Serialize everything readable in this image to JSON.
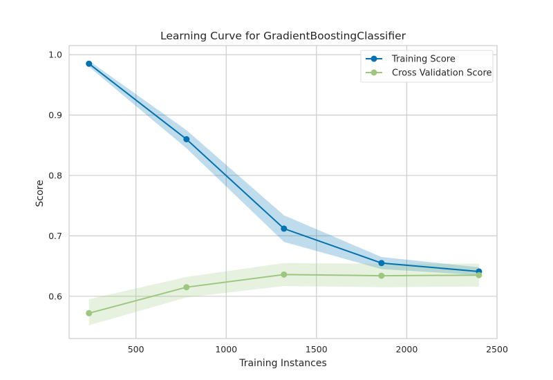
{
  "chart_data": {
    "type": "line",
    "title": "Learning Curve for GradientBoostingClassifier",
    "xlabel": "Training Instances",
    "ylabel": "Score",
    "xlim": [
      130,
      2500
    ],
    "ylim": [
      0.53,
      1.015
    ],
    "xticks": [
      500,
      1000,
      1500,
      2000,
      2500
    ],
    "yticks": [
      0.6,
      0.7,
      0.8,
      0.9,
      1.0
    ],
    "xtick_labels": [
      "500",
      "1000",
      "1500",
      "2000",
      "2500"
    ],
    "ytick_labels": [
      "0.6",
      "0.7",
      "0.8",
      "0.9",
      "1.0"
    ],
    "grid": true,
    "legend_position": "top-right",
    "x": [
      240,
      780,
      1320,
      1860,
      2400
    ],
    "series": [
      {
        "name": "Training Score",
        "color": "#0072b2",
        "values": [
          0.985,
          0.86,
          0.712,
          0.655,
          0.641
        ],
        "band_lower": [
          0.98,
          0.845,
          0.69,
          0.645,
          0.635
        ],
        "band_upper": [
          0.99,
          0.875,
          0.734,
          0.665,
          0.648
        ]
      },
      {
        "name": "Cross Validation Score",
        "color": "#9dc77f",
        "values": [
          0.572,
          0.615,
          0.636,
          0.634,
          0.635
        ],
        "band_lower": [
          0.552,
          0.598,
          0.617,
          0.615,
          0.616
        ],
        "band_upper": [
          0.595,
          0.632,
          0.655,
          0.654,
          0.654
        ]
      }
    ]
  }
}
